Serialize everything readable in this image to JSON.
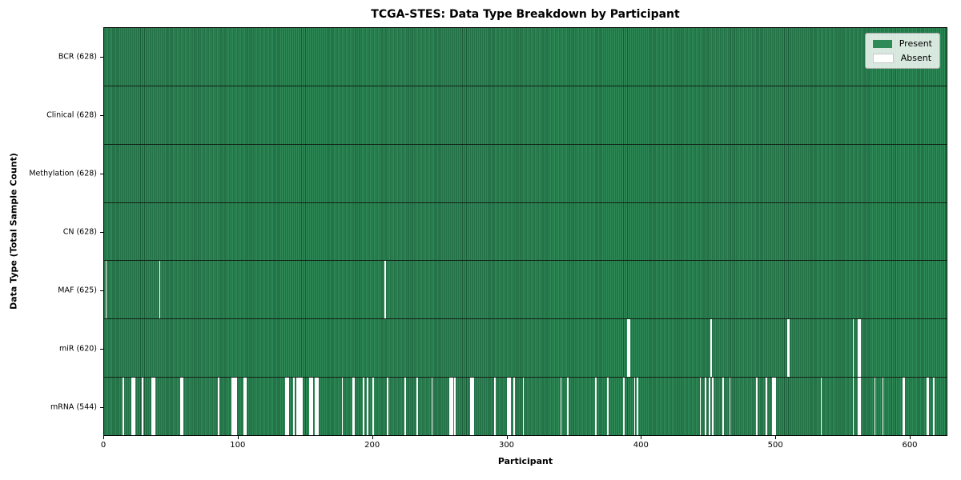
{
  "chart_data": {
    "type": "heatmap",
    "title": "TCGA-STES: Data Type Breakdown by Participant",
    "xlabel": "Participant",
    "ylabel": "Data Type (Total Sample Count)",
    "n_participants": 628,
    "xlim": [
      0,
      628
    ],
    "x_ticks": [
      0,
      100,
      200,
      300,
      400,
      500,
      600
    ],
    "grid": false,
    "colors": {
      "present": "#2e8b57",
      "present_edge": "#1c5b38",
      "absent": "#ffffff",
      "separator": "#121f16"
    },
    "legend": {
      "position": "upper right",
      "entries": [
        {
          "label": "Present",
          "color": "#2e8b57"
        },
        {
          "label": "Absent",
          "color": "#ffffff"
        }
      ]
    },
    "rows": [
      {
        "label": "BCR",
        "count": 628,
        "display": "BCR (628)",
        "absent": []
      },
      {
        "label": "Clinical",
        "count": 628,
        "display": "Clinical (628)",
        "absent": []
      },
      {
        "label": "Methylation",
        "count": 628,
        "display": "Methylation (628)",
        "absent": []
      },
      {
        "label": "CN",
        "count": 628,
        "display": "CN (628)",
        "absent": []
      },
      {
        "label": "MAF",
        "count": 625,
        "display": "MAF (625)",
        "absent": [
          1,
          41,
          209
        ]
      },
      {
        "label": "miR",
        "count": 620,
        "display": "miR (620)",
        "absent": [
          390,
          391,
          452,
          509,
          510,
          558,
          562,
          563
        ]
      },
      {
        "label": "mRNA",
        "count": 544,
        "display": "mRNA (544)",
        "absent": [
          14,
          20,
          21,
          22,
          28,
          35,
          36,
          37,
          57,
          58,
          85,
          95,
          96,
          97,
          98,
          104,
          105,
          135,
          136,
          137,
          141,
          143,
          144,
          145,
          146,
          147,
          153,
          154,
          155,
          157,
          158,
          159,
          177,
          185,
          186,
          193,
          196,
          200,
          211,
          224,
          233,
          244,
          257,
          258,
          259,
          261,
          273,
          274,
          275,
          291,
          300,
          301,
          302,
          305,
          312,
          340,
          345,
          366,
          375,
          387,
          395,
          397,
          444,
          448,
          451,
          453,
          461,
          466,
          486,
          493,
          498,
          499,
          500,
          534,
          558,
          562,
          563,
          574,
          580,
          595,
          596,
          613,
          614,
          618
        ]
      }
    ]
  }
}
